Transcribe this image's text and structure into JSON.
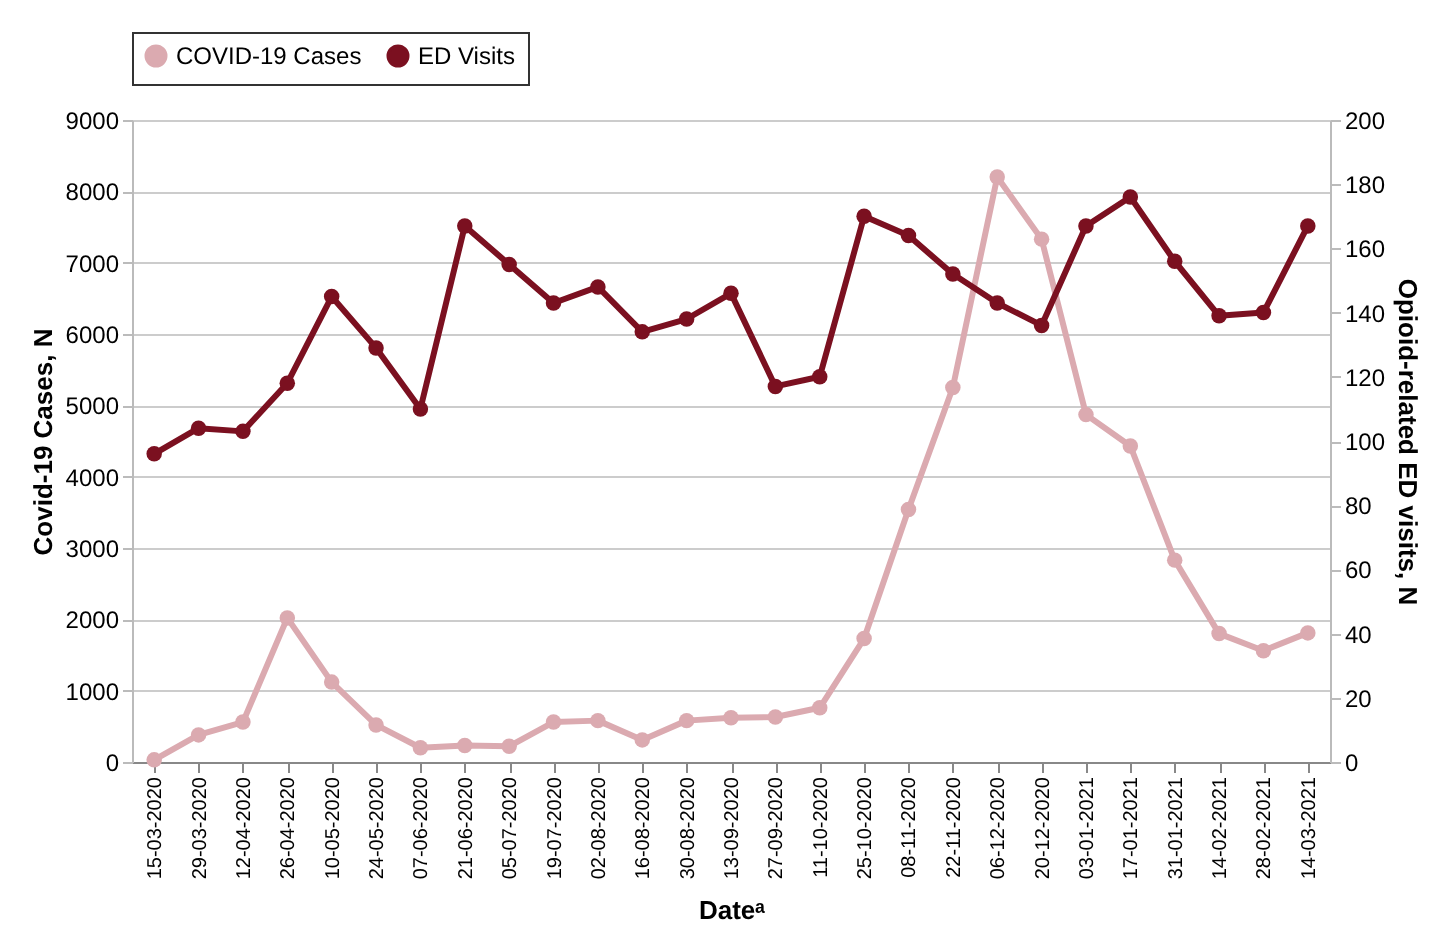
{
  "chart_data": {
    "type": "line",
    "xlabel": "Dateᵃ",
    "ylabel": "Covid-19 Cases, N",
    "y2label": "Opioid-related ED visits, N",
    "categories": [
      "15-03-2020",
      "29-03-2020",
      "12-04-2020",
      "26-04-2020",
      "10-05-2020",
      "24-05-2020",
      "07-06-2020",
      "21-06-2020",
      "05-07-2020",
      "19-07-2020",
      "02-08-2020",
      "16-08-2020",
      "30-08-2020",
      "13-09-2020",
      "27-09-2020",
      "11-10-2020",
      "25-10-2020",
      "08-11-2020",
      "22-11-2020",
      "06-12-2020",
      "20-12-2020",
      "03-01-2021",
      "17-01-2021",
      "31-01-2021",
      "14-02-2021",
      "28-02-2021",
      "14-03-2021"
    ],
    "series": [
      {
        "name": "COVID-19 Cases",
        "color": "#dbaab0",
        "values": [
          30,
          380,
          560,
          2020,
          1120,
          520,
          200,
          230,
          220,
          560,
          580,
          310,
          580,
          620,
          630,
          760,
          1730,
          3540,
          5250,
          8200,
          7330,
          4870,
          4430,
          2830,
          1800,
          1560,
          1810
        ]
      },
      {
        "name": "ED Visits",
        "color": "#7b1020",
        "axis": "y2",
        "values": [
          96,
          104,
          103,
          118,
          145,
          129,
          110,
          167,
          155,
          143,
          148,
          134,
          138,
          146,
          117,
          120,
          170,
          164,
          152,
          143,
          136,
          167,
          176,
          156,
          139,
          140,
          167
        ]
      }
    ],
    "ylim": [
      0,
      9000
    ],
    "yticks": [
      0,
      1000,
      2000,
      3000,
      4000,
      5000,
      6000,
      7000,
      8000,
      9000
    ],
    "y2lim": [
      0,
      200
    ],
    "y2ticks": [
      0,
      20,
      40,
      60,
      80,
      100,
      120,
      140,
      160,
      180,
      200
    ],
    "grid": "y",
    "legend": "top",
    "marker": "circle",
    "line_style": "solid"
  }
}
